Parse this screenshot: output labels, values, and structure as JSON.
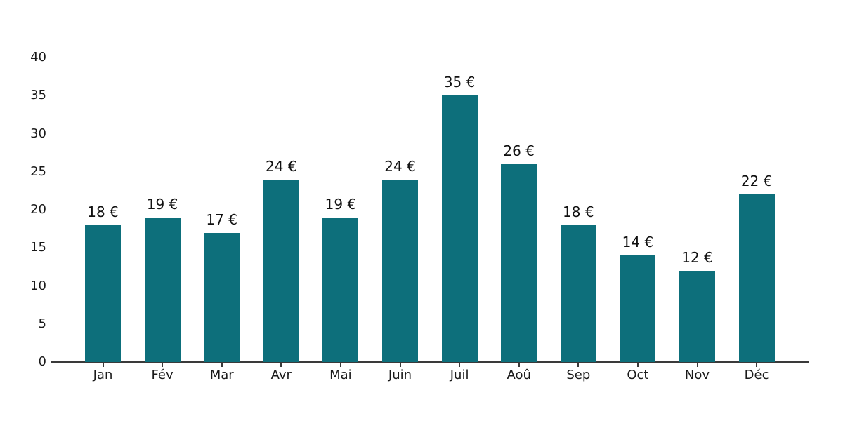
{
  "chart_data": {
    "type": "bar",
    "title": "",
    "xlabel": "",
    "ylabel": "",
    "categories": [
      "Jan",
      "Fév",
      "Mar",
      "Avr",
      "Mai",
      "Juin",
      "Juil",
      "Aoû",
      "Sep",
      "Oct",
      "Nov",
      "Déc"
    ],
    "values": [
      18,
      19,
      17,
      24,
      19,
      24,
      35,
      26,
      18,
      14,
      12,
      22
    ],
    "bar_labels": [
      "18 €",
      "19 €",
      "17 €",
      "24 €",
      "19 €",
      "24 €",
      "35 €",
      "26 €",
      "18 €",
      "14 €",
      "12 €",
      "22 €"
    ],
    "unit": "€",
    "y_ticks": [
      "0",
      "5",
      "10",
      "15",
      "20",
      "25",
      "30",
      "35",
      "40"
    ],
    "y_tick_values": [
      0,
      5,
      10,
      15,
      20,
      25,
      30,
      35,
      40
    ],
    "ylim": [
      0,
      40
    ],
    "grid": false,
    "legend": null,
    "colors": {
      "bar": "#0d6f7b",
      "axis": "#3a3a3a",
      "text": "#1a1a1a",
      "background": "#ffffff"
    }
  }
}
